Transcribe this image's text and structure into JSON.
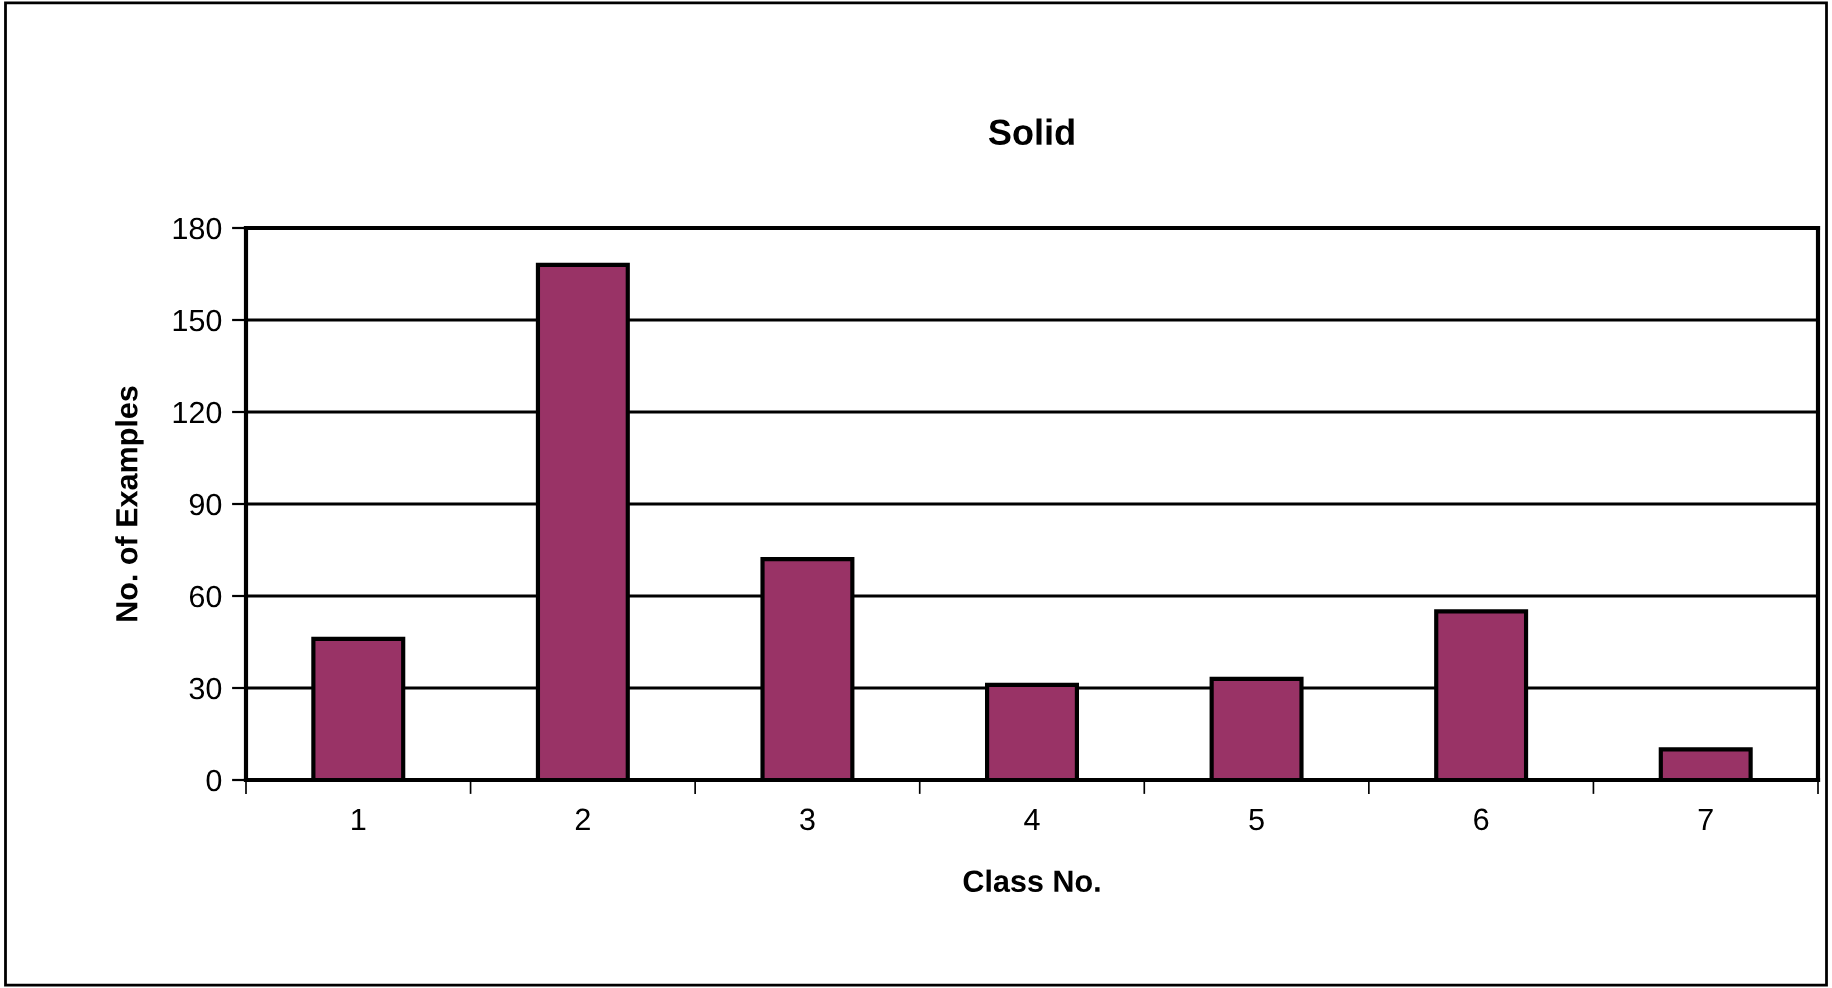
{
  "chart_data": {
    "type": "bar",
    "title": "Solid",
    "xlabel": "Class No.",
    "ylabel": "No. of Examples",
    "categories": [
      "1",
      "2",
      "3",
      "4",
      "5",
      "6",
      "7"
    ],
    "values": [
      46,
      168,
      72,
      31,
      33,
      55,
      10
    ],
    "color": "#993366",
    "ylim": [
      0,
      180
    ],
    "yticks": [
      0,
      30,
      60,
      90,
      120,
      150,
      180
    ],
    "grid": "y",
    "legend": false
  }
}
